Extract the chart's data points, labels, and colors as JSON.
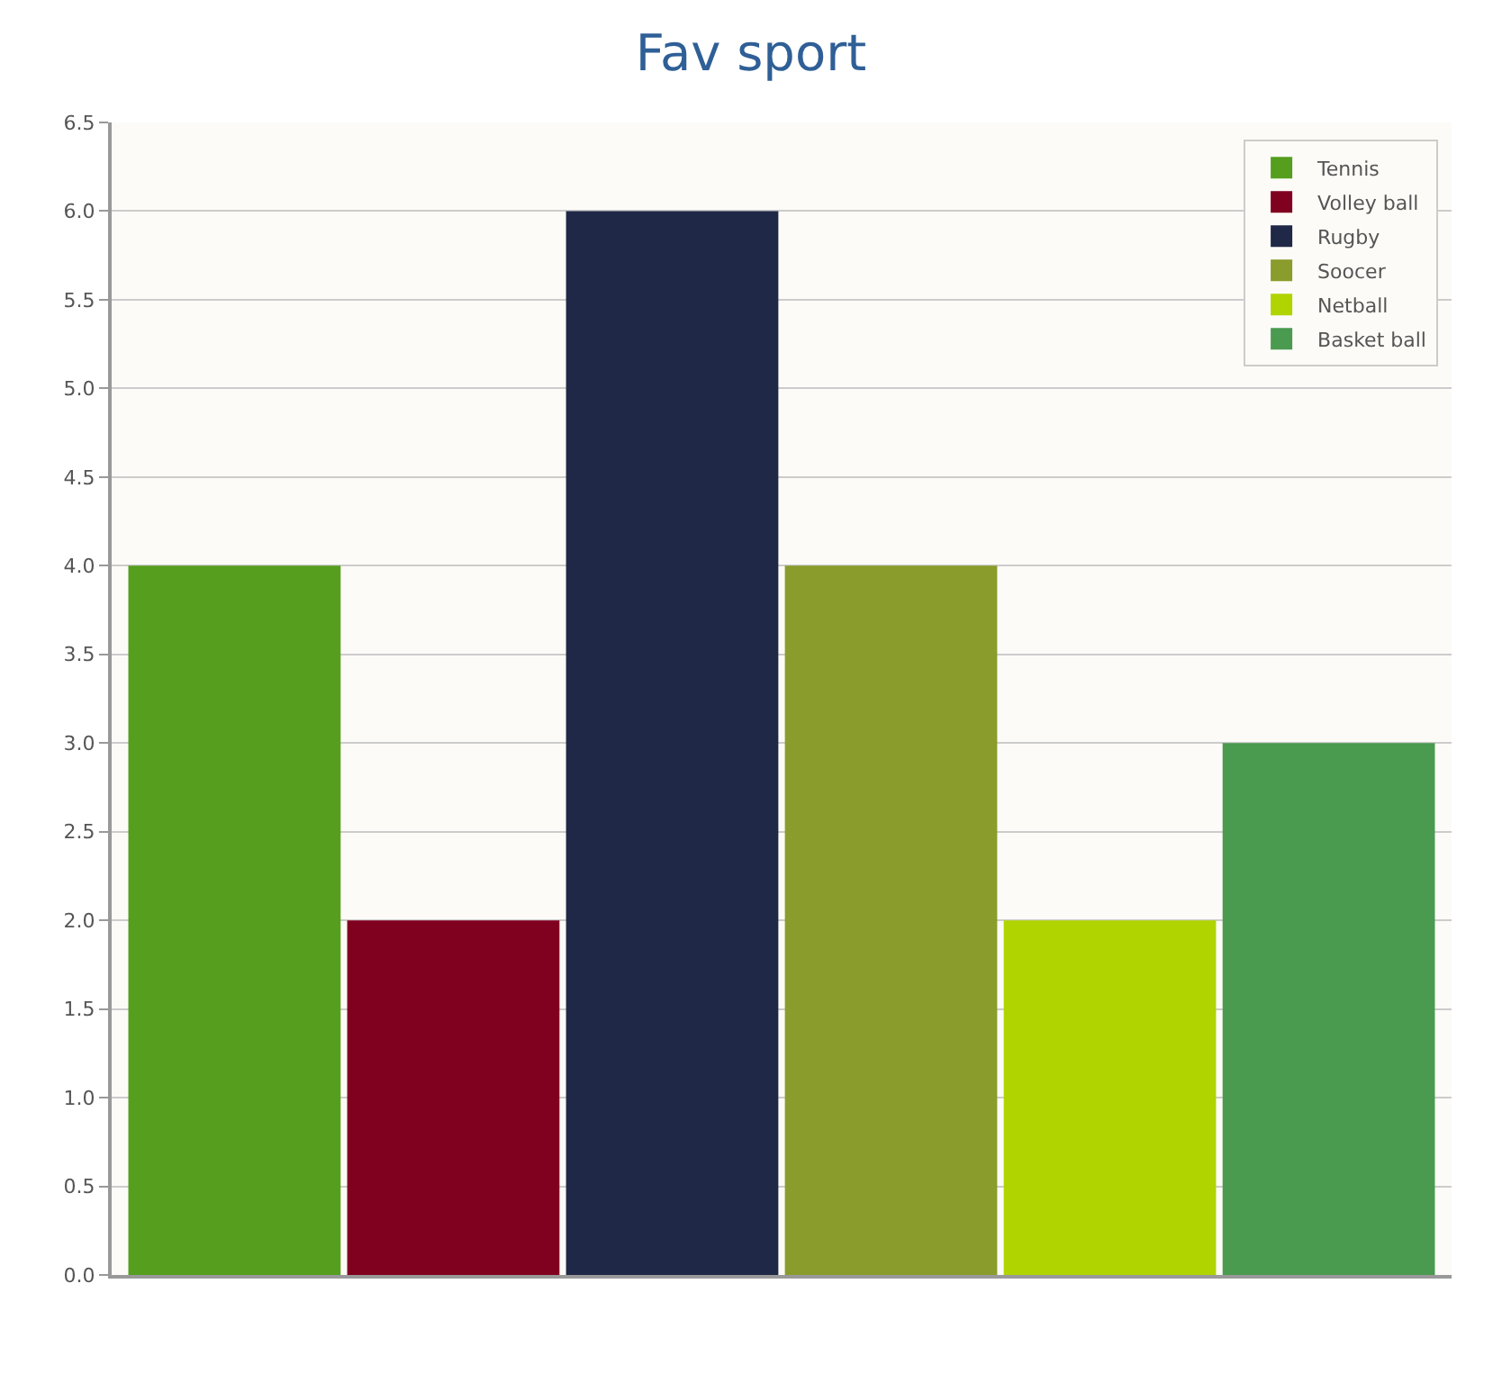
{
  "chart_data": {
    "type": "bar",
    "title": "Fav sport",
    "categories": [
      null
    ],
    "series": [
      {
        "name": "Tennis",
        "color": "#559e1e",
        "values": [
          4
        ]
      },
      {
        "name": "Volley ball",
        "color": "#800020",
        "values": [
          2
        ]
      },
      {
        "name": "Rugby",
        "color": "#1f2846",
        "values": [
          6
        ]
      },
      {
        "name": "Soocer",
        "color": "#8a9c2b",
        "values": [
          4
        ]
      },
      {
        "name": "Netball",
        "color": "#b0d400",
        "values": [
          2
        ]
      },
      {
        "name": "Basket ball",
        "color": "#4a9a50",
        "values": [
          3
        ]
      }
    ],
    "ylim": [
      0,
      6.5
    ],
    "yticks": [
      {
        "value": 0,
        "label": "0.0"
      },
      0.5,
      {
        "value": 1,
        "label": "1.0"
      },
      1.5,
      {
        "value": 2,
        "label": "2.0"
      },
      2.5,
      {
        "value": 3,
        "label": "3.0"
      },
      3.5,
      {
        "value": 4,
        "label": "4.0"
      },
      4.5,
      {
        "value": 5,
        "label": "5.0"
      },
      5.5,
      {
        "value": 6,
        "label": "6.0"
      },
      6.5
    ],
    "grid": "y",
    "legend": "top right"
  }
}
